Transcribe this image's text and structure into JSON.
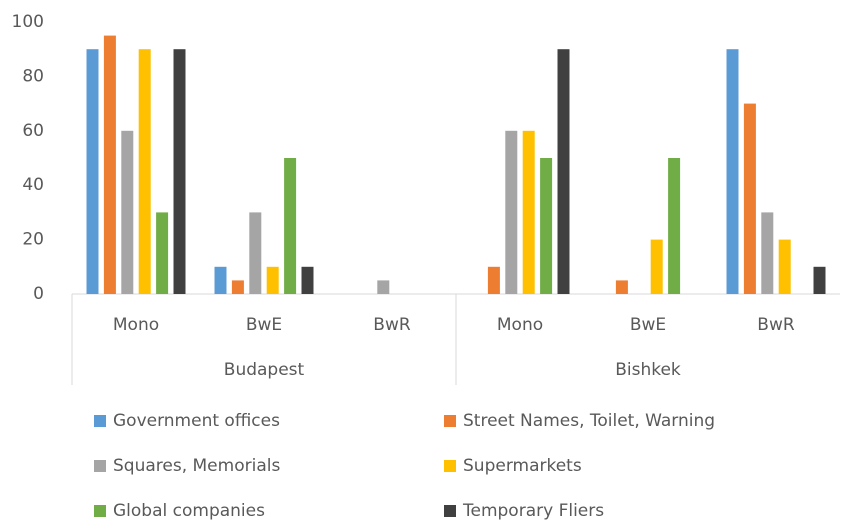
{
  "chart_data": {
    "type": "bar",
    "groups": [
      "Budapest",
      "Bishkek"
    ],
    "categories": [
      "Mono",
      "BwE",
      "BwR",
      "Mono",
      "BwE",
      "BwR"
    ],
    "series": [
      {
        "name": "Government offices",
        "color": "#5b9bd5",
        "values": [
          90,
          10,
          0,
          0,
          0,
          90
        ]
      },
      {
        "name": "Street Names, Toilet, Warning",
        "color": "#ed7d31",
        "values": [
          95,
          5,
          0,
          10,
          5,
          70
        ]
      },
      {
        "name": "Squares, Memorials",
        "color": "#a5a5a5",
        "values": [
          60,
          30,
          5,
          60,
          0,
          30
        ]
      },
      {
        "name": "Supermarkets",
        "color": "#ffc000",
        "values": [
          90,
          10,
          0,
          60,
          20,
          20
        ]
      },
      {
        "name": "Global companies",
        "color": "#70ad47",
        "values": [
          30,
          50,
          0,
          50,
          50,
          0
        ]
      },
      {
        "name": "Temporary Fliers",
        "color": "#404040",
        "values": [
          90,
          10,
          0,
          90,
          0,
          10
        ]
      }
    ],
    "ylim": [
      0,
      100
    ],
    "yticks": [
      0,
      20,
      40,
      60,
      80,
      100
    ],
    "grid": false,
    "legend": "bottom"
  }
}
